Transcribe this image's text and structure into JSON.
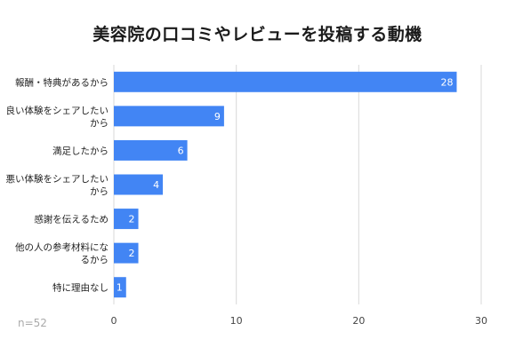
{
  "sample_note": "n=52",
  "chart_data": {
    "type": "bar",
    "orientation": "horizontal",
    "title": "美容院の口コミやレビューを投稿する動機",
    "categories": [
      [
        "報酬・特典があるから"
      ],
      [
        "良い体験をシェアしたい",
        "から"
      ],
      [
        "満足したから"
      ],
      [
        "悪い体験をシェアしたい",
        "から"
      ],
      [
        "感謝を伝えるため"
      ],
      [
        "他の人の参考材料にな",
        "るから"
      ],
      [
        "特に理由なし"
      ]
    ],
    "values": [
      28,
      9,
      6,
      4,
      2,
      2,
      1
    ],
    "xlim": [
      0,
      30
    ],
    "xticks": [
      0,
      10,
      20,
      30
    ],
    "grid": true,
    "bar_color": "#4285f4",
    "label_color": "#ffffff"
  }
}
